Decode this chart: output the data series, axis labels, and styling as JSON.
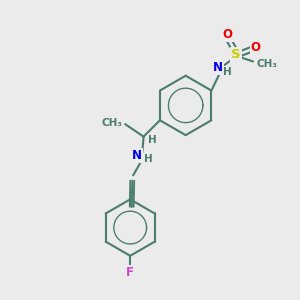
{
  "bg_color": "#ebebeb",
  "bond_color": "#4a7c6f",
  "C_color": "#4a7c6f",
  "N_color": "#0000ee",
  "O_color": "#ee0000",
  "S_color": "#cccc00",
  "F_color": "#cc44cc",
  "H_color": "#4a7c6f",
  "lw": 1.5,
  "figsize": [
    3.0,
    3.0
  ],
  "dpi": 100,
  "xlim": [
    0,
    10
  ],
  "ylim": [
    0,
    10
  ]
}
